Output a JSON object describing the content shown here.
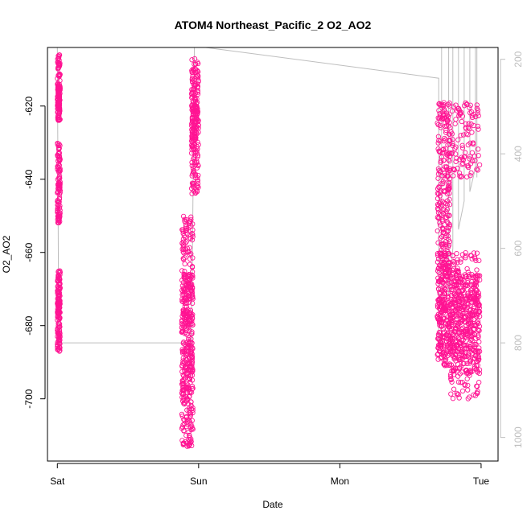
{
  "chart_data": {
    "type": "scatter",
    "title": "ATOM4 Northeast_Pacific_2 O2_AO2",
    "xlabel": "Date",
    "ylabel": "O2_AO2",
    "x_ticks": [
      "Sat",
      "Sun",
      "Mon",
      "Tue"
    ],
    "x_tick_values": [
      0,
      1,
      2,
      3
    ],
    "xlim": [
      -0.07,
      3.12
    ],
    "y_ticks": [
      -620,
      -640,
      -660,
      -680,
      -700
    ],
    "ylim": [
      -717,
      -604
    ],
    "y2_ticks": [
      200,
      400,
      600,
      800,
      1000
    ],
    "y2lim": [
      1050,
      175
    ],
    "grid": false,
    "point_color": "#ff1493",
    "secondary_line_color": "#bebebe",
    "series": [
      {
        "marker": "open-circle",
        "clusters": [
          {
            "x": [
              0.0,
              0.02
            ],
            "y_ranges": [
              [
                -624,
                -606
              ],
              [
                -624,
                -614
              ],
              [
                -652,
                -630
              ],
              [
                -678,
                -665
              ],
              [
                -687,
                -669
              ]
            ]
          },
          {
            "x": [
              0.88,
              0.96
            ],
            "y_ranges": [
              [
                -700,
                -665
              ],
              [
                -713,
                -685
              ],
              [
                -680,
                -650
              ]
            ]
          },
          {
            "x": [
              0.95,
              1.0
            ],
            "y_ranges": [
              [
                -633,
                -607
              ],
              [
                -644,
                -620
              ]
            ]
          },
          {
            "x": [
              2.69,
              2.78
            ],
            "y_ranges": [
              [
                -640,
                -619
              ],
              [
                -668,
                -640
              ],
              [
                -691,
                -660
              ],
              [
                -688,
                -672
              ]
            ]
          },
          {
            "x": [
              2.78,
              2.99
            ],
            "y_ranges": [
              [
                -640,
                -619
              ],
              [
                -694,
                -660
              ],
              [
                -700,
                -665
              ],
              [
                -690,
                -666
              ],
              [
                -687,
                -665
              ]
            ]
          }
        ]
      }
    ],
    "secondary_series": {
      "type": "line",
      "points": [
        [
          0.0,
          175
        ],
        [
          0.01,
          800
        ],
        [
          0.95,
          800
        ],
        [
          0.97,
          175
        ],
        [
          1.05,
          175
        ],
        [
          2.7,
          240
        ],
        [
          2.7,
          800
        ],
        [
          2.72,
          800
        ],
        [
          2.72,
          175
        ],
        [
          2.77,
          175
        ],
        [
          2.77,
          700
        ],
        [
          2.8,
          600
        ],
        [
          2.8,
          175
        ],
        [
          2.84,
          175
        ],
        [
          2.84,
          560
        ],
        [
          2.88,
          500
        ],
        [
          2.88,
          175
        ],
        [
          2.92,
          175
        ],
        [
          2.92,
          480
        ],
        [
          2.96,
          430
        ],
        [
          2.96,
          175
        ],
        [
          2.97,
          175
        ],
        [
          2.97,
          450
        ]
      ]
    }
  }
}
